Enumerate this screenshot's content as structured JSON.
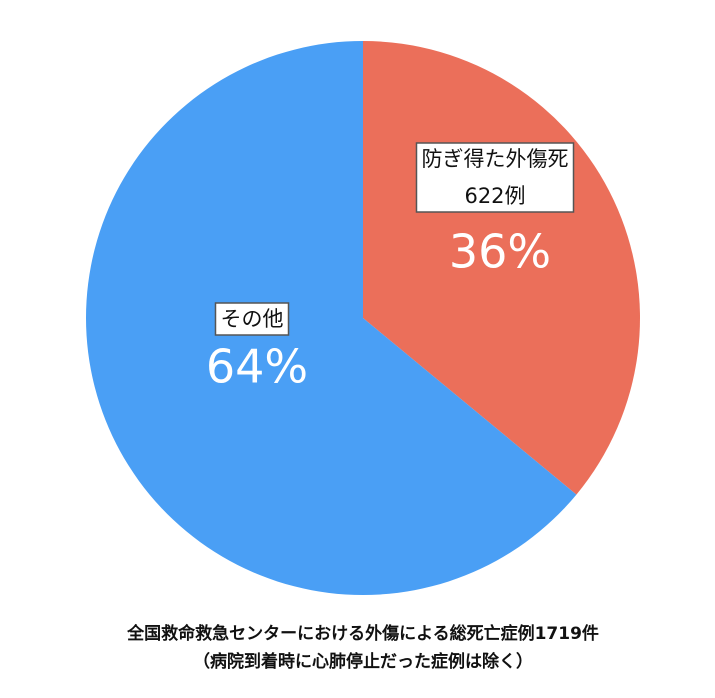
{
  "chart_data": {
    "type": "pie",
    "title": "全国救命救急センターにおける外傷による総死亡症例1719件",
    "subtitle": "（病院到着時に心肺停止だった症例は除く）",
    "categories": [
      "防ぎ得た外傷死",
      "その他"
    ],
    "sublabels": [
      "622例",
      null
    ],
    "values": [
      36,
      64
    ],
    "value_labels": [
      "36%",
      "64%"
    ],
    "colors": [
      "#eb6f5a",
      "#4a9ff5"
    ]
  }
}
